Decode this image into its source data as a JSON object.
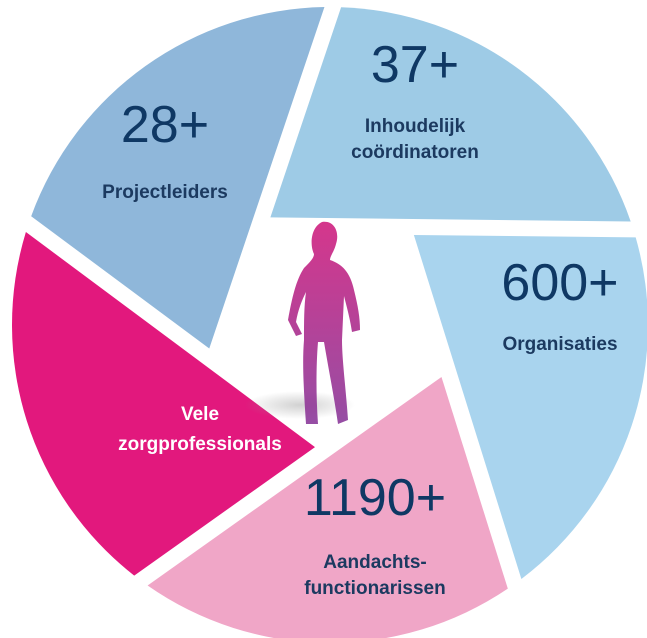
{
  "segments": [
    {
      "number": "37+",
      "label": [
        "Inhoudelijk",
        "coördinatoren"
      ]
    },
    {
      "number": "600+",
      "label": [
        "Organisaties"
      ]
    },
    {
      "number": "1190+",
      "label": [
        "Aandachts-",
        "functionarissen"
      ]
    },
    {
      "label": [
        "Vele",
        "zorgprofessionals"
      ]
    },
    {
      "number": "28+",
      "label": [
        "Projectleiders"
      ]
    }
  ]
}
